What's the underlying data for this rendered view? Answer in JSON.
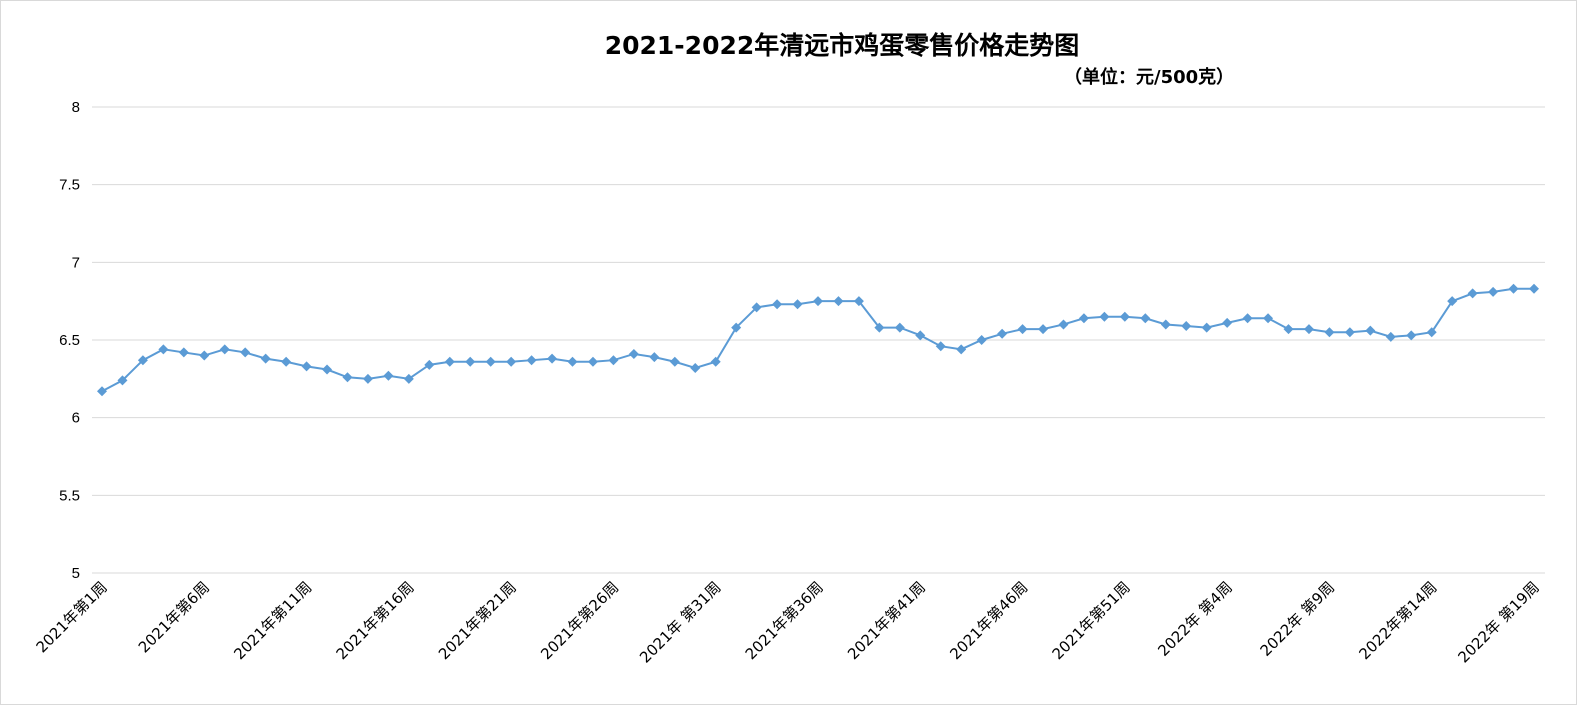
{
  "chart_data": {
    "type": "line",
    "title": "2021-2022年清远市鸡蛋零售价格走势图",
    "subtitle": "（单位：元/500克）",
    "ylim": [
      5,
      8
    ],
    "yticks": [
      "5",
      "5.5",
      "6",
      "6.5",
      "7",
      "7.5",
      "8"
    ],
    "grid": true,
    "xtick_labels": [
      "2021年第1周",
      "2021年第6周",
      "2021年第11周",
      "2021年第16周",
      "2021年第21周",
      "2021年第26周",
      "2021年 第31周",
      "2021年第36周",
      "2021年第41周",
      "2021年第46周",
      "2021年第51周",
      "2022年 第4周",
      "2022年 第9周",
      "2022年第14周",
      "2022年 第19周"
    ],
    "series": [
      {
        "color": "#5b9bd5",
        "values": [
          6.17,
          6.24,
          6.37,
          6.44,
          6.42,
          6.4,
          6.44,
          6.42,
          6.38,
          6.36,
          6.33,
          6.31,
          6.26,
          6.25,
          6.27,
          6.25,
          6.34,
          6.36,
          6.36,
          6.36,
          6.36,
          6.37,
          6.38,
          6.36,
          6.36,
          6.37,
          6.41,
          6.39,
          6.36,
          6.32,
          6.36,
          6.58,
          6.71,
          6.73,
          6.73,
          6.75,
          6.75,
          6.75,
          6.58,
          6.58,
          6.53,
          6.46,
          6.44,
          6.5,
          6.54,
          6.57,
          6.57,
          6.6,
          6.64,
          6.65,
          6.65,
          6.64,
          6.6,
          6.59,
          6.58,
          6.61,
          6.64,
          6.64,
          6.57,
          6.57,
          6.55,
          6.55,
          6.56,
          6.52,
          6.53,
          6.55,
          6.75,
          6.8,
          6.81,
          6.83,
          6.83
        ]
      }
    ]
  }
}
